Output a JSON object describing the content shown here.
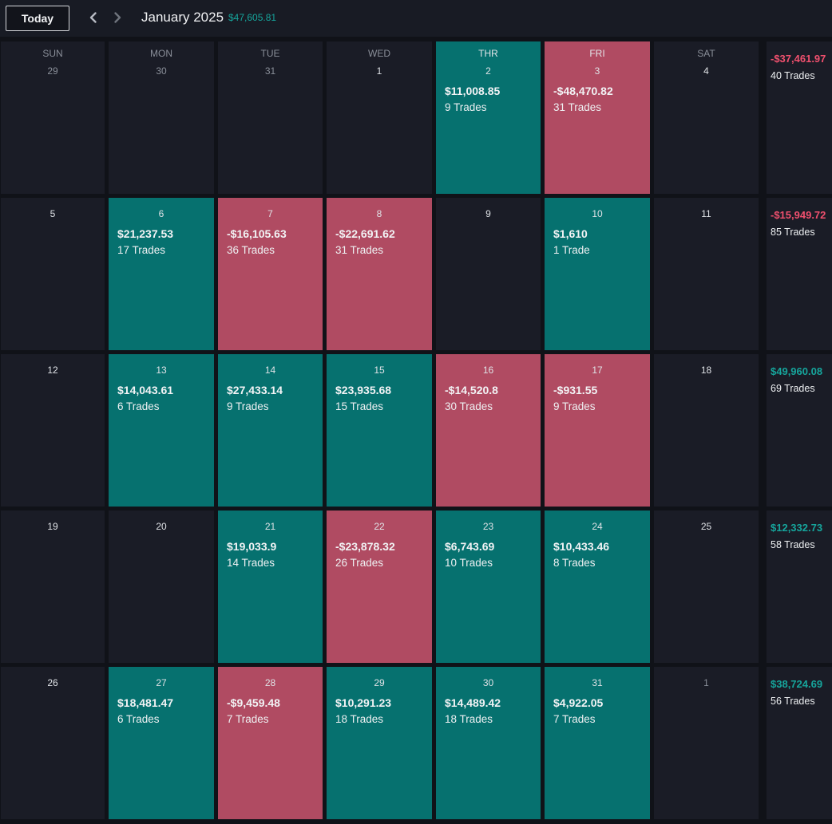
{
  "header": {
    "today_label": "Today",
    "month_title": "January 2025",
    "month_total": "$47,605.81",
    "prev_icon": "chevron-left-icon",
    "next_icon": "chevron-right-icon"
  },
  "colors": {
    "profit": "#06716f",
    "loss": "#b04b62",
    "empty": "#1a1c26",
    "positive_text": "#16a59c",
    "negative_text": "#f0506e"
  },
  "weekdays": [
    "SUN",
    "MON",
    "TUE",
    "WED",
    "THR",
    "FRI",
    "SAT"
  ],
  "weeks": [
    {
      "days": [
        {
          "day": "29",
          "muted": true
        },
        {
          "day": "30",
          "muted": true
        },
        {
          "day": "31",
          "muted": true
        },
        {
          "day": "1"
        },
        {
          "day": "2",
          "pnl": "$11,008.85",
          "trades": "9 Trades",
          "status": "profit"
        },
        {
          "day": "3",
          "pnl": "-$48,470.82",
          "trades": "31 Trades",
          "status": "loss"
        },
        {
          "day": "4"
        }
      ],
      "total": "-$37,461.97",
      "total_sign": "neg",
      "trades": "40 Trades"
    },
    {
      "days": [
        {
          "day": "5"
        },
        {
          "day": "6",
          "pnl": "$21,237.53",
          "trades": "17 Trades",
          "status": "profit"
        },
        {
          "day": "7",
          "pnl": "-$16,105.63",
          "trades": "36 Trades",
          "status": "loss"
        },
        {
          "day": "8",
          "pnl": "-$22,691.62",
          "trades": "31 Trades",
          "status": "loss"
        },
        {
          "day": "9"
        },
        {
          "day": "10",
          "pnl": "$1,610",
          "trades": "1 Trade",
          "status": "profit"
        },
        {
          "day": "11"
        }
      ],
      "total": "-$15,949.72",
      "total_sign": "neg",
      "trades": "85 Trades"
    },
    {
      "days": [
        {
          "day": "12"
        },
        {
          "day": "13",
          "pnl": "$14,043.61",
          "trades": "6 Trades",
          "status": "profit"
        },
        {
          "day": "14",
          "pnl": "$27,433.14",
          "trades": "9 Trades",
          "status": "profit"
        },
        {
          "day": "15",
          "pnl": "$23,935.68",
          "trades": "15 Trades",
          "status": "profit"
        },
        {
          "day": "16",
          "pnl": "-$14,520.8",
          "trades": "30 Trades",
          "status": "loss"
        },
        {
          "day": "17",
          "pnl": "-$931.55",
          "trades": "9 Trades",
          "status": "loss"
        },
        {
          "day": "18"
        }
      ],
      "total": "$49,960.08",
      "total_sign": "pos",
      "trades": "69 Trades"
    },
    {
      "days": [
        {
          "day": "19"
        },
        {
          "day": "20"
        },
        {
          "day": "21",
          "pnl": "$19,033.9",
          "trades": "14 Trades",
          "status": "profit"
        },
        {
          "day": "22",
          "pnl": "-$23,878.32",
          "trades": "26 Trades",
          "status": "loss"
        },
        {
          "day": "23",
          "pnl": "$6,743.69",
          "trades": "10 Trades",
          "status": "profit"
        },
        {
          "day": "24",
          "pnl": "$10,433.46",
          "trades": "8 Trades",
          "status": "profit"
        },
        {
          "day": "25"
        }
      ],
      "total": "$12,332.73",
      "total_sign": "pos",
      "trades": "58 Trades"
    },
    {
      "days": [
        {
          "day": "26"
        },
        {
          "day": "27",
          "pnl": "$18,481.47",
          "trades": "6 Trades",
          "status": "profit"
        },
        {
          "day": "28",
          "pnl": "-$9,459.48",
          "trades": "7 Trades",
          "status": "loss"
        },
        {
          "day": "29",
          "pnl": "$10,291.23",
          "trades": "18 Trades",
          "status": "profit"
        },
        {
          "day": "30",
          "pnl": "$14,489.42",
          "trades": "18 Trades",
          "status": "profit"
        },
        {
          "day": "31",
          "pnl": "$4,922.05",
          "trades": "7 Trades",
          "status": "profit"
        },
        {
          "day": "1",
          "muted": true
        }
      ],
      "total": "$38,724.69",
      "total_sign": "pos",
      "trades": "56 Trades"
    }
  ]
}
